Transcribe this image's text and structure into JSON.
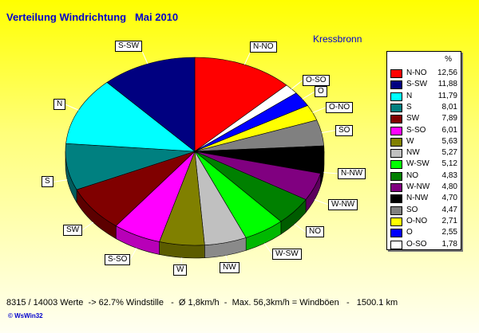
{
  "title": "Verteilung Windrichtung   Mai 2010",
  "location": "Kressbronn",
  "footer": "8315 / 14003 Werte  -> 62.7% Windstille   -  Ø 1,8km/h  -  Max. 56,3km/h = Windböen   -   1500.1 km",
  "credit": "© WsWin32",
  "chart_data": {
    "type": "pie",
    "unit": "%",
    "slices": [
      {
        "label": "N-NO",
        "value": 12.56,
        "display": "12,56",
        "color": "#ff0000"
      },
      {
        "label": "S-SW",
        "value": 11.88,
        "display": "11,88",
        "color": "#000080"
      },
      {
        "label": "N",
        "value": 11.79,
        "display": "11,79",
        "color": "#00ffff"
      },
      {
        "label": "S",
        "value": 8.01,
        "display": "8,01",
        "color": "#008080"
      },
      {
        "label": "SW",
        "value": 7.89,
        "display": "7,89",
        "color": "#800000"
      },
      {
        "label": "S-SO",
        "value": 6.01,
        "display": "6,01",
        "color": "#ff00ff"
      },
      {
        "label": "W",
        "value": 5.63,
        "display": "5,63",
        "color": "#808000"
      },
      {
        "label": "NW",
        "value": 5.27,
        "display": "5,27",
        "color": "#c0c0c0"
      },
      {
        "label": "W-SW",
        "value": 5.12,
        "display": "5,12",
        "color": "#00ff00"
      },
      {
        "label": "NO",
        "value": 4.83,
        "display": "4,83",
        "color": "#008000"
      },
      {
        "label": "W-NW",
        "value": 4.8,
        "display": "4,80",
        "color": "#800080"
      },
      {
        "label": "N-NW",
        "value": 4.7,
        "display": "4,70",
        "color": "#000000"
      },
      {
        "label": "SO",
        "value": 4.47,
        "display": "4,47",
        "color": "#808080"
      },
      {
        "label": "O-NO",
        "value": 2.71,
        "display": "2,71",
        "color": "#ffff00"
      },
      {
        "label": "O",
        "value": 2.55,
        "display": "2,55",
        "color": "#0000ff"
      },
      {
        "label": "O-SO",
        "value": 1.78,
        "display": "1,78",
        "color": "#ffffff"
      }
    ],
    "pie_order": [
      "N-NO",
      "O-SO",
      "O",
      "O-NO",
      "SO",
      "N-NW",
      "W-NW",
      "NO",
      "W-SW",
      "NW",
      "W",
      "S-SO",
      "SW",
      "S",
      "N",
      "S-SW"
    ],
    "legend_position": "right"
  }
}
